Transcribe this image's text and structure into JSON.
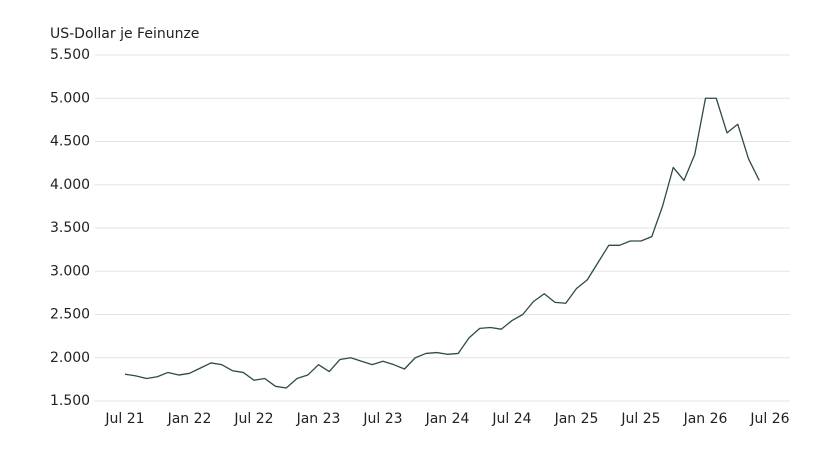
{
  "chart_data": {
    "type": "line",
    "y_axis_title": "US-Dollar je Feinunze",
    "categories": [
      "Jul 21",
      null,
      null,
      null,
      null,
      null,
      "Jan 22",
      null,
      null,
      null,
      null,
      null,
      "Jul 22",
      null,
      null,
      null,
      null,
      null,
      "Jan 23",
      null,
      null,
      null,
      null,
      null,
      "Jul 23",
      null,
      null,
      null,
      null,
      null,
      "Jan 24",
      null,
      null,
      null,
      null,
      null,
      "Jul 24",
      null,
      null,
      null,
      null,
      null,
      "Jan 25",
      null,
      null,
      null,
      null,
      null,
      "Jul 25",
      null,
      null,
      null,
      null,
      null,
      "Jan 26",
      null,
      null,
      null,
      null,
      null,
      "Jul 26"
    ],
    "values": [
      1810,
      1790,
      1760,
      1780,
      1830,
      1800,
      1820,
      1880,
      1940,
      1920,
      1850,
      1830,
      1740,
      1760,
      1670,
      1650,
      1760,
      1800,
      1920,
      1840,
      1980,
      2000,
      1960,
      1920,
      1960,
      1920,
      1870,
      2000,
      2050,
      2060,
      2040,
      2050,
      2230,
      2340,
      2350,
      2330,
      2430,
      2500,
      2650,
      2740,
      2640,
      2630,
      2800,
      2900,
      3100,
      3300,
      3300,
      3350,
      3350,
      3400,
      3750,
      4200,
      4050,
      4350,
      5000,
      5000,
      4600,
      4700,
      4300,
      4050,
      null
    ],
    "color": "#2e4a4a",
    "ylim": [
      1500,
      5500
    ],
    "yticks": [
      {
        "value": 1500,
        "label": "1.500"
      },
      {
        "value": 2000,
        "label": "2.000"
      },
      {
        "value": 2500,
        "label": "2.500"
      },
      {
        "value": 3000,
        "label": "3.000"
      },
      {
        "value": 3500,
        "label": "3.500"
      },
      {
        "value": 4000,
        "label": "4.000"
      },
      {
        "value": 4500,
        "label": "4.500"
      },
      {
        "value": 5000,
        "label": "5.000"
      },
      {
        "value": 5500,
        "label": "5.500"
      }
    ],
    "grid": true
  }
}
